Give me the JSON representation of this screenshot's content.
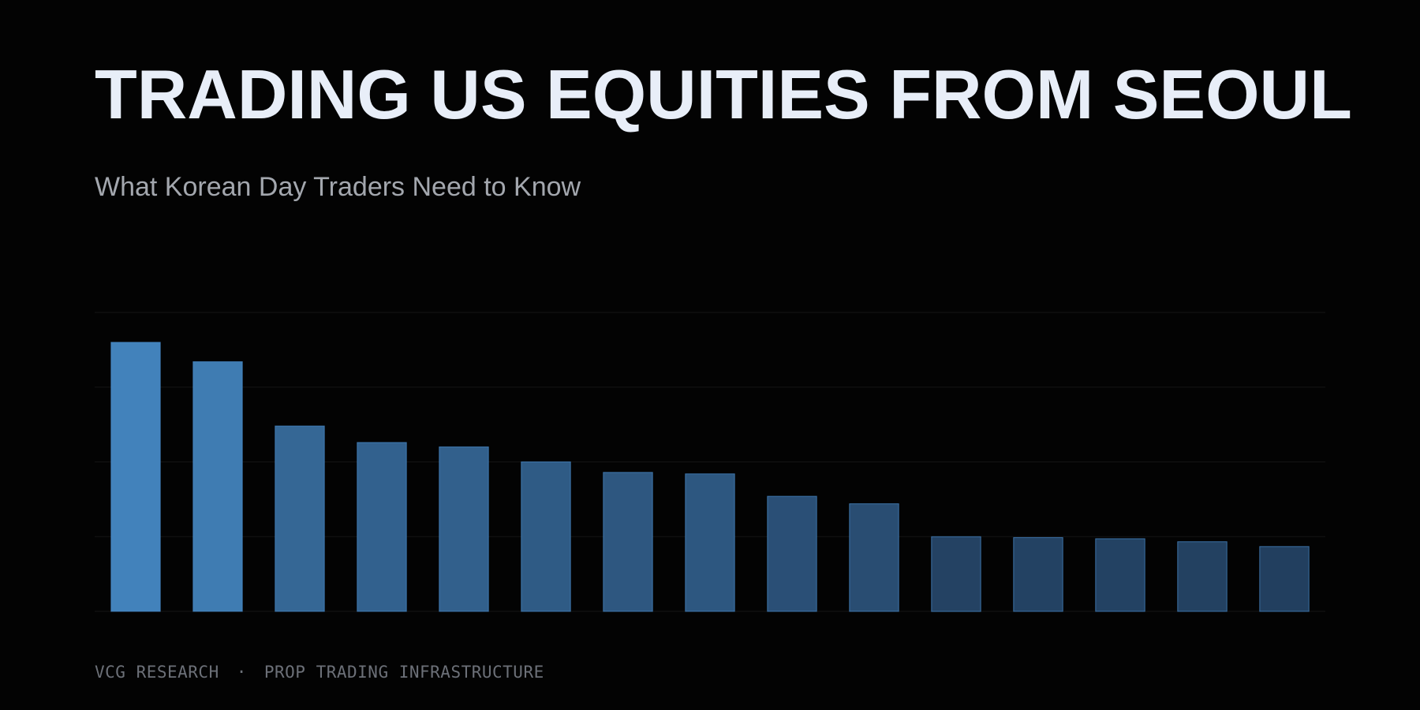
{
  "header": {
    "title": "TRADING US EQUITIES FROM SEOUL",
    "subtitle": "What Korean Day Traders Need to Know"
  },
  "footer": {
    "brand": "VCG RESEARCH",
    "separator": "·",
    "tagline": "PROP TRADING INFRASTRUCTURE"
  },
  "colors": {
    "background": "#030303",
    "title": "#e8eef8",
    "subtitle": "#a3a7ae",
    "footer": "#6c7078",
    "bar_light": "#4282bb",
    "bar_dark": "#223f5f",
    "bar_stroke": "#4a8fd0",
    "grid": "#141414"
  },
  "chart_data": {
    "type": "bar",
    "values": [
      90,
      83.5,
      62,
      56.5,
      55,
      50,
      46.5,
      46,
      38.5,
      36,
      25,
      24.7,
      24.3,
      23.3,
      21.7
    ],
    "ylim": [
      0,
      100
    ],
    "grid": true,
    "gridlines": [
      0,
      25,
      50,
      75,
      100
    ]
  }
}
